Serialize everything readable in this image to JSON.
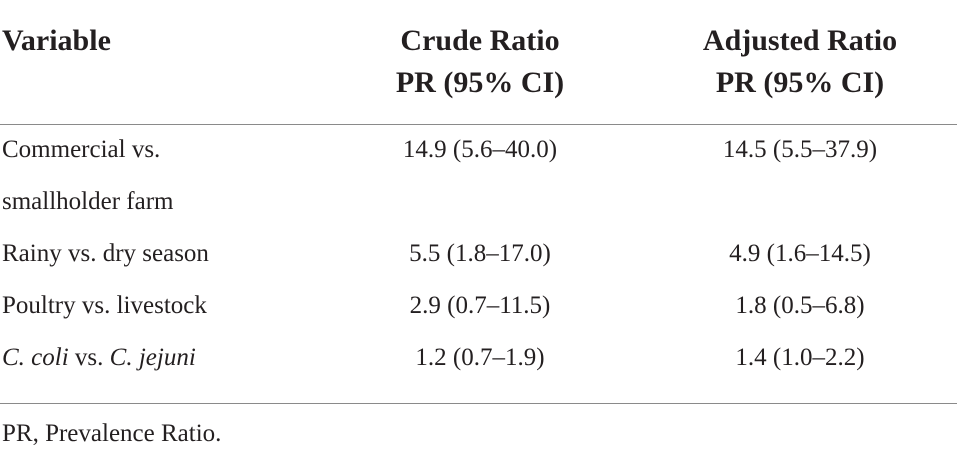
{
  "table": {
    "columns": [
      [
        "Variable"
      ],
      [
        "Crude Ratio",
        "PR (95% CI)"
      ],
      [
        "Adjusted Ratio",
        "PR (95% CI)"
      ]
    ],
    "rows": [
      [
        "Commercial vs. smallholder farm",
        "14.9 (5.6–40.0)",
        "14.5 (5.5–37.9)"
      ],
      [
        "Rainy vs. dry season",
        "5.5 (1.8–17.0)",
        "4.9 (1.6–14.5)"
      ],
      [
        "Poultry vs. livestock",
        "2.9 (0.7–11.5)",
        "1.8 (0.5–6.8)"
      ],
      [
        [
          {
            "text": "C. coli",
            "italic": true
          },
          {
            "text": " vs. "
          },
          {
            "text": "C. jejuni",
            "italic": true
          }
        ],
        "1.2 (0.7–1.9)",
        "1.4 (1.0–2.2)"
      ]
    ]
  },
  "footnote": "PR, Prevalence Ratio."
}
